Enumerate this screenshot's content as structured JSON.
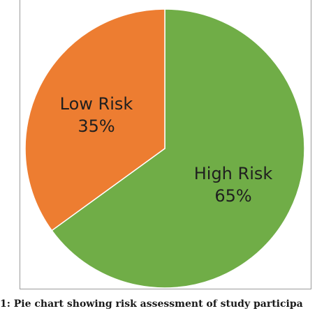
{
  "chart_data": {
    "type": "pie",
    "title": "",
    "slices": [
      {
        "name": "High Risk",
        "value": 65,
        "label": "65%",
        "color": "#70ad47"
      },
      {
        "name": "Low Risk",
        "value": 35,
        "label": "35%",
        "color": "#ed7d31"
      }
    ],
    "start_angle_deg": 0,
    "direction": "clockwise",
    "legend": "none"
  },
  "caption": {
    "text": "1: Pie chart showing risk assessment of study participa"
  }
}
